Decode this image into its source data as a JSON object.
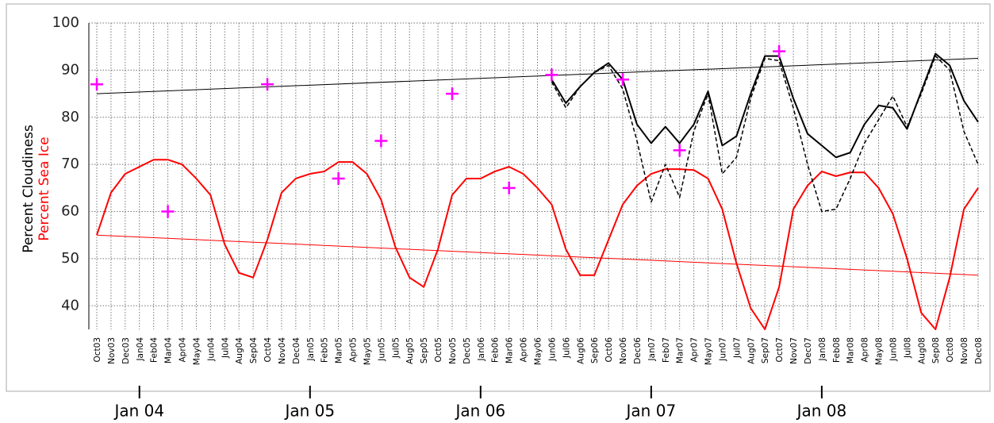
{
  "chart_data": {
    "type": "line",
    "y_labels": [
      {
        "text": "Percent Cloudiness",
        "color": "#000000"
      },
      {
        "text": "Percent Sea Ice",
        "color": "#ff0000"
      }
    ],
    "categories": [
      "Oct03",
      "Nov03",
      "Dec03",
      "Jan04",
      "Feb04",
      "Mar04",
      "Apr04",
      "May04",
      "Jun04",
      "Jul04",
      "Aug04",
      "Sep04",
      "Oct04",
      "Nov04",
      "Dec04",
      "Jan05",
      "Feb05",
      "Mar05",
      "Apr05",
      "May05",
      "Jun05",
      "Jul05",
      "Aug05",
      "Sep05",
      "Oct05",
      "Nov05",
      "Dec05",
      "Jan06",
      "Feb06",
      "Mar06",
      "Apr06",
      "May06",
      "Jun06",
      "Jul06",
      "Aug06",
      "Sep06",
      "Oct06",
      "Nov06",
      "Dec06",
      "Jan07",
      "Feb07",
      "Mar07",
      "Apr07",
      "May07",
      "Jun07",
      "Jul07",
      "Aug07",
      "Sep07",
      "Oct07",
      "Nov07",
      "Dec07",
      "Jan08",
      "Feb08",
      "Mar08",
      "Apr08",
      "May08",
      "Jun08",
      "Jul08",
      "Aug08",
      "Sep08",
      "Oct08",
      "Nov08",
      "Dec08"
    ],
    "major_ticks": [
      {
        "category": "Jan04",
        "label": "Jan 04"
      },
      {
        "category": "Jan05",
        "label": "Jan 05"
      },
      {
        "category": "Jan06",
        "label": "Jan 06"
      },
      {
        "category": "Jan07",
        "label": "Jan 07"
      },
      {
        "category": "Jan08",
        "label": "Jan 08"
      }
    ],
    "series": [
      {
        "color": "#ff0000",
        "style": "solid",
        "values": [
          55,
          64,
          68,
          69.5,
          71,
          71,
          70,
          67,
          63.5,
          53,
          47,
          46,
          54,
          64,
          67,
          68,
          68.5,
          70.5,
          70.5,
          68,
          62.5,
          52.5,
          46,
          44,
          52,
          63.5,
          67,
          67,
          68.5,
          69.5,
          68,
          65,
          61.5,
          52,
          46.5,
          46.5,
          54,
          61.5,
          65.5,
          68,
          69,
          69,
          68.8,
          67,
          60.5,
          49,
          39.5,
          35,
          44,
          60.5,
          65.5,
          68.5,
          67.5,
          68.3,
          68.3,
          65,
          59.5,
          50,
          38.5,
          35,
          46,
          60.5,
          65
        ]
      },
      {
        "color": "#000000",
        "style": "solid",
        "values": [
          null,
          null,
          null,
          null,
          null,
          null,
          null,
          null,
          null,
          null,
          null,
          null,
          null,
          null,
          null,
          null,
          null,
          null,
          null,
          null,
          null,
          null,
          null,
          null,
          null,
          null,
          null,
          null,
          null,
          null,
          null,
          null,
          88,
          83,
          86.5,
          89.5,
          91.5,
          88,
          78.5,
          74.5,
          78,
          74.5,
          78.5,
          85.5,
          74,
          76,
          85,
          93,
          93,
          84,
          76.5,
          74,
          71.5,
          72.5,
          78.5,
          82.5,
          82,
          77.5,
          85.5,
          93.5,
          91,
          83.5,
          79
        ]
      },
      {
        "color": "#000000",
        "style": "dashed",
        "values": [
          null,
          null,
          null,
          null,
          null,
          null,
          null,
          null,
          null,
          null,
          null,
          null,
          null,
          null,
          null,
          null,
          null,
          null,
          null,
          null,
          null,
          null,
          null,
          null,
          null,
          null,
          null,
          null,
          null,
          null,
          null,
          null,
          87.5,
          82,
          86.5,
          89.5,
          91,
          86,
          75,
          62,
          70,
          63,
          77,
          85,
          68,
          71.5,
          84,
          92.5,
          92,
          82,
          70,
          60,
          60.5,
          67,
          74.5,
          79.5,
          84.5,
          78,
          85,
          93,
          90,
          77,
          70
        ]
      },
      {
        "color": "#ff00ff",
        "style": "plus",
        "values": [
          87,
          null,
          null,
          null,
          null,
          60,
          null,
          null,
          null,
          null,
          null,
          null,
          87,
          null,
          null,
          null,
          null,
          67,
          null,
          null,
          75,
          null,
          null,
          null,
          null,
          85,
          null,
          null,
          null,
          65,
          null,
          null,
          89,
          null,
          null,
          null,
          null,
          88,
          null,
          null,
          null,
          73,
          null,
          null,
          null,
          null,
          null,
          null,
          94,
          null,
          null,
          null,
          null,
          null,
          null,
          null,
          null,
          null,
          null,
          null,
          null,
          null,
          null
        ]
      }
    ],
    "trend_lines": [
      {
        "color": "#ff0000",
        "values": [
          55,
          46.5
        ]
      },
      {
        "color": "#000000",
        "values": [
          85,
          92.5
        ]
      }
    ],
    "ylim": [
      35,
      100
    ],
    "yticks": [
      40,
      50,
      60,
      70,
      80,
      90,
      100
    ],
    "grid": true
  }
}
